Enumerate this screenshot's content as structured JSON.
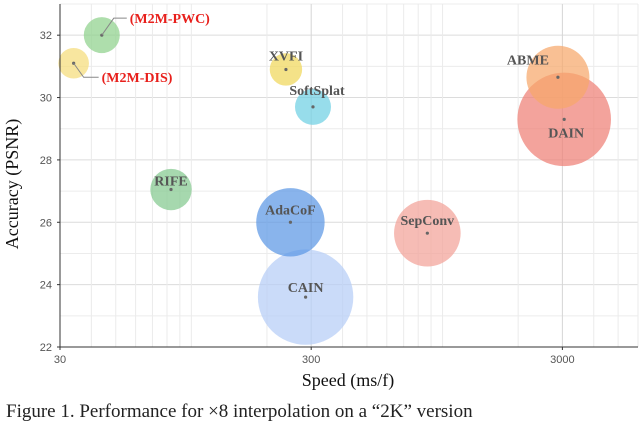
{
  "chart_data": {
    "type": "scatter",
    "title": "",
    "xlabel": "Speed (ms/f)",
    "ylabel": "Accuracy (PSNR)",
    "xscale": "log",
    "xlim": [
      30,
      6000
    ],
    "ylim": [
      22,
      33
    ],
    "xticks": [
      30,
      300,
      3000
    ],
    "yticks": [
      22,
      24,
      26,
      28,
      30,
      32
    ],
    "grid": true,
    "legend": "none",
    "points": [
      {
        "label": "(M2M-PWC)",
        "x": 44,
        "y": 32.0,
        "color": "#8fd18c",
        "size": 1.0,
        "highlight": true
      },
      {
        "label": "(M2M-DIS)",
        "x": 34,
        "y": 31.1,
        "color": "#f5dc7a",
        "size": 0.85,
        "highlight": true
      },
      {
        "label": "XVFI",
        "x": 238,
        "y": 30.9,
        "color": "#f0d75a",
        "size": 0.9,
        "highlight": false
      },
      {
        "label": "SoftSplat",
        "x": 305,
        "y": 29.7,
        "color": "#6fd0e3",
        "size": 1.0,
        "highlight": false
      },
      {
        "label": "ABME",
        "x": 2880,
        "y": 30.65,
        "color": "#f7a86b",
        "size": 1.75,
        "highlight": false
      },
      {
        "label": "DAIN",
        "x": 3050,
        "y": 29.3,
        "color": "#ee7f76",
        "size": 2.6,
        "highlight": false
      },
      {
        "label": "RIFE",
        "x": 83,
        "y": 27.05,
        "color": "#84c98f",
        "size": 1.15,
        "highlight": false
      },
      {
        "label": "AdaCoF",
        "x": 248,
        "y": 26.0,
        "color": "#5b97e5",
        "size": 1.9,
        "highlight": false
      },
      {
        "label": "SepConv",
        "x": 870,
        "y": 25.65,
        "color": "#f3a299",
        "size": 1.85,
        "highlight": false
      },
      {
        "label": "CAIN",
        "x": 285,
        "y": 23.6,
        "color": "#b5cdf6",
        "size": 2.65,
        "highlight": false
      }
    ]
  },
  "caption": "Figure 1.  Performance for ×8 interpolation on a “2K” version"
}
